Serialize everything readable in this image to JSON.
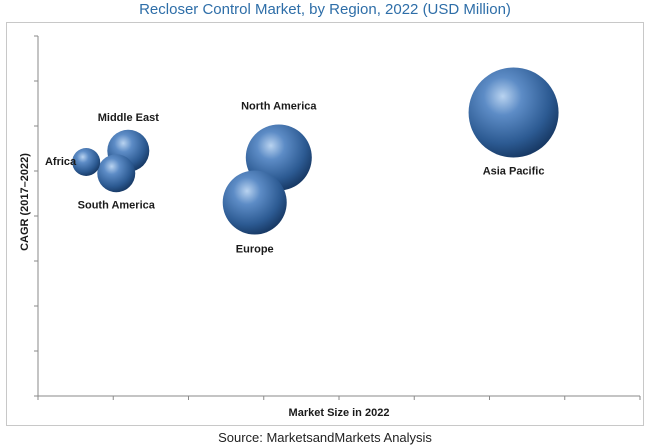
{
  "title": "Recloser Control Market, by Region, 2022 (USD Million)",
  "source": "Source: MarketsandMarkets Analysis",
  "chart_data": {
    "type": "bubble",
    "title": "Recloser Control Market, by Region, 2022 (USD Million)",
    "xlabel": "Market Size in 2022",
    "ylabel": "CAGR (2017–2022)",
    "grid": false,
    "legend": "none",
    "bubble_color": "#3f6fa8",
    "bubbles": [
      {
        "label": "Africa",
        "x": 0.8,
        "y": 5.2,
        "size": 14
      },
      {
        "label": "Middle East",
        "x": 1.5,
        "y": 5.45,
        "size": 21
      },
      {
        "label": "South America",
        "x": 1.3,
        "y": 4.95,
        "size": 19
      },
      {
        "label": "North America",
        "x": 4.0,
        "y": 5.3,
        "size": 33
      },
      {
        "label": "Europe",
        "x": 3.6,
        "y": 4.3,
        "size": 32
      },
      {
        "label": "Asia Pacific",
        "x": 7.9,
        "y": 6.3,
        "size": 45
      }
    ],
    "x_range": [
      0,
      10
    ],
    "y_range": [
      0,
      8
    ]
  }
}
